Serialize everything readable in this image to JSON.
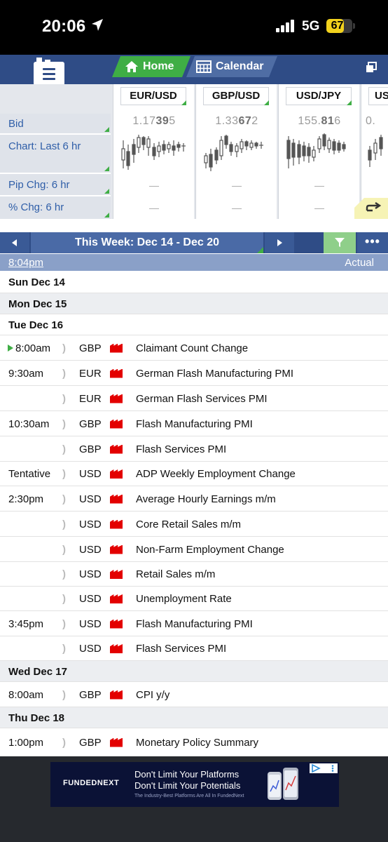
{
  "status_bar": {
    "time": "20:06",
    "network": "5G",
    "battery": "67"
  },
  "header": {
    "home_tab": "Home",
    "calendar_tab": "Calendar"
  },
  "quotes": {
    "labels": {
      "bid": "Bid",
      "chart": "Chart: Last 6 hr",
      "pip": "Pip Chg: 6 hr",
      "pct": "% Chg: 6 hr"
    },
    "pairs": [
      {
        "symbol": "EUR/USD",
        "bid_prefix": "1.17",
        "bid_big": "39",
        "bid_suffix": "5",
        "pip": "—",
        "pct": "—"
      },
      {
        "symbol": "GBP/USD",
        "bid_prefix": "1.33",
        "bid_big": "67",
        "bid_suffix": "2",
        "pip": "—",
        "pct": "—"
      },
      {
        "symbol": "USD/JPY",
        "bid_prefix": "155.",
        "bid_big": "81",
        "bid_suffix": "6",
        "pip": "—",
        "pct": "—"
      },
      {
        "symbol": "US",
        "bid_prefix": "0.",
        "bid_big": "",
        "bid_suffix": "",
        "pip": "",
        "pct": ""
      }
    ]
  },
  "week_nav": {
    "title": "This Week: Dec 14 - Dec 20",
    "more": "•••"
  },
  "subheader": {
    "time": "8:04pm",
    "actual": "Actual"
  },
  "calendar": {
    "days": [
      "Sun Dec 14",
      "Mon Dec 15",
      "Tue Dec 16",
      "Wed Dec 17",
      "Thu Dec 18"
    ],
    "events": [
      {
        "time": "8:00am",
        "currency": "GBP",
        "name": "Claimant Count Change"
      },
      {
        "time": "9:30am",
        "currency": "EUR",
        "name": "German Flash Manufacturing PMI"
      },
      {
        "time": "",
        "currency": "EUR",
        "name": "German Flash Services PMI"
      },
      {
        "time": "10:30am",
        "currency": "GBP",
        "name": "Flash Manufacturing PMI"
      },
      {
        "time": "",
        "currency": "GBP",
        "name": "Flash Services PMI"
      },
      {
        "time": "Tentative",
        "currency": "USD",
        "name": "ADP Weekly Employment Change"
      },
      {
        "time": "2:30pm",
        "currency": "USD",
        "name": "Average Hourly Earnings m/m"
      },
      {
        "time": "",
        "currency": "USD",
        "name": "Core Retail Sales m/m"
      },
      {
        "time": "",
        "currency": "USD",
        "name": "Non-Farm Employment Change"
      },
      {
        "time": "",
        "currency": "USD",
        "name": "Retail Sales m/m"
      },
      {
        "time": "",
        "currency": "USD",
        "name": "Unemployment Rate"
      },
      {
        "time": "3:45pm",
        "currency": "USD",
        "name": "Flash Manufacturing PMI"
      },
      {
        "time": "",
        "currency": "USD",
        "name": "Flash Services PMI"
      },
      {
        "time": "8:00am",
        "currency": "GBP",
        "name": "CPI y/y"
      },
      {
        "time": "1:00pm",
        "currency": "GBP",
        "name": "Monetary Policy Summary"
      }
    ]
  },
  "ad": {
    "brand": "FUNDEDNEXT",
    "line1": "Don't Limit Your Platforms",
    "line2": "Don't Limit Your Potentials",
    "line3": "The Industry-Best Platforms Are All In FundedNext"
  },
  "colors": {
    "navy": "#2f4c86",
    "green": "#3fae45",
    "link_blue": "#2f5ea8",
    "flag_red": "#e30000"
  }
}
